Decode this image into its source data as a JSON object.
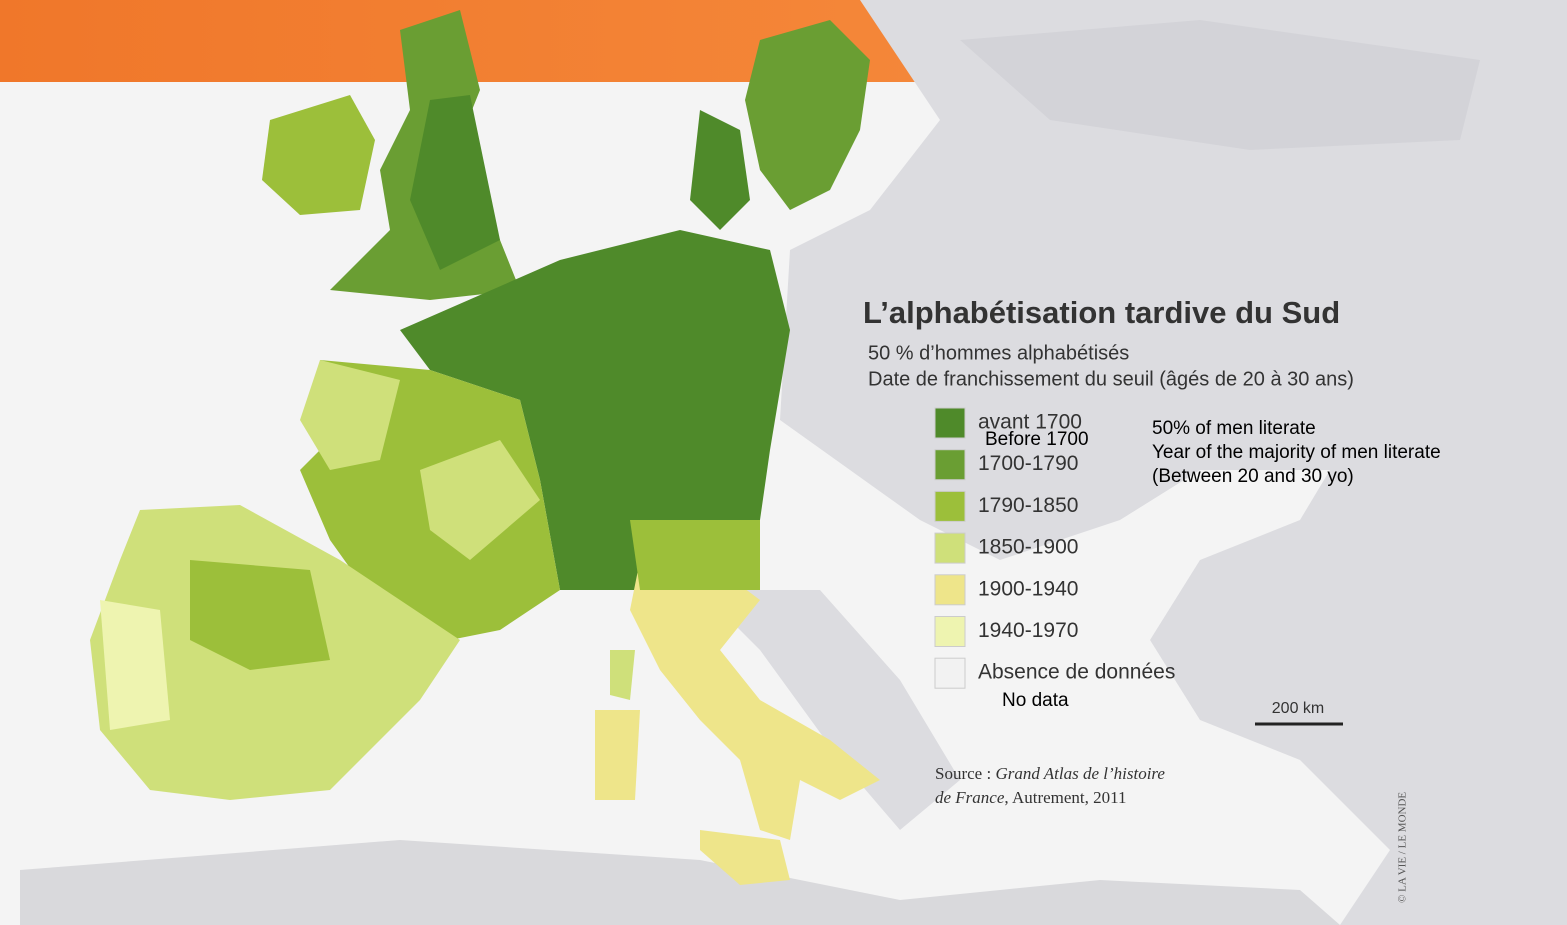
{
  "title": "L’alphabétisation tardive du Sud",
  "subtitle": "50 % d’hommes alphabétisés",
  "subtitle_detail": "Date de franchissement du seuil (âgés de 20 à 30 ans)",
  "legend": [
    {
      "label": "avant 1700",
      "color": "#4f8a2a"
    },
    {
      "label": "1700-1790",
      "color": "#6a9e33"
    },
    {
      "label": "1790-1850",
      "color": "#9cbf3a"
    },
    {
      "label": "1850-1900",
      "color": "#cfe07a"
    },
    {
      "label": "1900-1940",
      "color": "#eee58a"
    },
    {
      "label": "1940-1970",
      "color": "#eef4b0"
    },
    {
      "label": "Absence de données",
      "color": "#f2f2f2"
    }
  ],
  "translations": {
    "before_1700": "Before 1700",
    "no_data": "No data",
    "line1": "50% of men literate",
    "line2": "Year of the majority of men literate",
    "line3": "(Between 20 and 30 yo)"
  },
  "scale": "200 km",
  "source": {
    "line1": [
      "Source : ",
      "Grand Atlas de l’histoire"
    ],
    "line2": [
      "de France",
      ", Autrement, 2011"
    ]
  },
  "credit": "© LA VIE / LE MONDE"
}
